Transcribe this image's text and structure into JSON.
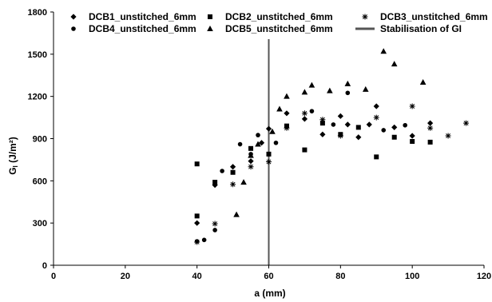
{
  "chart_data": {
    "type": "scatter",
    "xlabel": "a (mm)",
    "ylabel": "G",
    "ylabel_sub": "I",
    "ylabel_unit": " (J/m²)",
    "xlim": [
      0,
      120
    ],
    "ylim": [
      0,
      1800
    ],
    "xticks": [
      0,
      20,
      40,
      60,
      80,
      100,
      120
    ],
    "yticks": [
      0,
      300,
      600,
      900,
      1200,
      1500,
      1800
    ],
    "grid": false,
    "legend_position": "top",
    "stabilisation_line": {
      "name": "Stabilisation of GI",
      "x": 60
    },
    "series": [
      {
        "name": "DCB1_unstitched_6mm",
        "marker": "diamond",
        "points": [
          [
            40,
            300
          ],
          [
            45,
            570
          ],
          [
            50,
            700
          ],
          [
            55,
            740
          ],
          [
            58,
            870
          ],
          [
            60,
            970
          ],
          [
            65,
            1080
          ],
          [
            70,
            1040
          ],
          [
            75,
            930
          ],
          [
            80,
            1060
          ],
          [
            82,
            1000
          ],
          [
            85,
            910
          ],
          [
            88,
            1000
          ],
          [
            90,
            1130
          ],
          [
            95,
            980
          ],
          [
            100,
            920
          ],
          [
            105,
            1010
          ]
        ]
      },
      {
        "name": "DCB2_unstitched_6mm",
        "marker": "square",
        "points": [
          [
            40,
            350
          ],
          [
            40,
            720
          ],
          [
            45,
            590
          ],
          [
            50,
            660
          ],
          [
            55,
            830
          ],
          [
            60,
            790
          ],
          [
            65,
            990
          ],
          [
            70,
            820
          ],
          [
            75,
            1010
          ],
          [
            80,
            930
          ],
          [
            85,
            980
          ],
          [
            90,
            770
          ],
          [
            95,
            910
          ],
          [
            100,
            880
          ],
          [
            105,
            875
          ]
        ]
      },
      {
        "name": "DCB3_unstitched_6mm",
        "marker": "star",
        "points": [
          [
            40,
            165
          ],
          [
            45,
            295
          ],
          [
            50,
            575
          ],
          [
            55,
            700
          ],
          [
            60,
            735
          ],
          [
            65,
            975
          ],
          [
            70,
            1080
          ],
          [
            75,
            1035
          ],
          [
            80,
            920
          ],
          [
            90,
            1050
          ],
          [
            100,
            1130
          ],
          [
            105,
            975
          ],
          [
            110,
            920
          ],
          [
            115,
            1010
          ]
        ]
      },
      {
        "name": "DCB4_unstitched_6mm",
        "marker": "circle",
        "points": [
          [
            40,
            170
          ],
          [
            42,
            180
          ],
          [
            45,
            250
          ],
          [
            47,
            670
          ],
          [
            52,
            860
          ],
          [
            55,
            790
          ],
          [
            57,
            925
          ],
          [
            62,
            870
          ],
          [
            65,
            985
          ],
          [
            72,
            1095
          ],
          [
            78,
            1000
          ],
          [
            82,
            1225
          ],
          [
            92,
            960
          ],
          [
            98,
            995
          ]
        ]
      },
      {
        "name": "DCB5_unstitched_6mm",
        "marker": "triangle",
        "points": [
          [
            51,
            360
          ],
          [
            53,
            590
          ],
          [
            55,
            780
          ],
          [
            57,
            860
          ],
          [
            61,
            950
          ],
          [
            63,
            1110
          ],
          [
            65,
            1200
          ],
          [
            70,
            1230
          ],
          [
            72,
            1280
          ],
          [
            77,
            1240
          ],
          [
            82,
            1290
          ],
          [
            87,
            1250
          ],
          [
            92,
            1520
          ],
          [
            95,
            1430
          ],
          [
            103,
            1300
          ]
        ]
      }
    ]
  }
}
